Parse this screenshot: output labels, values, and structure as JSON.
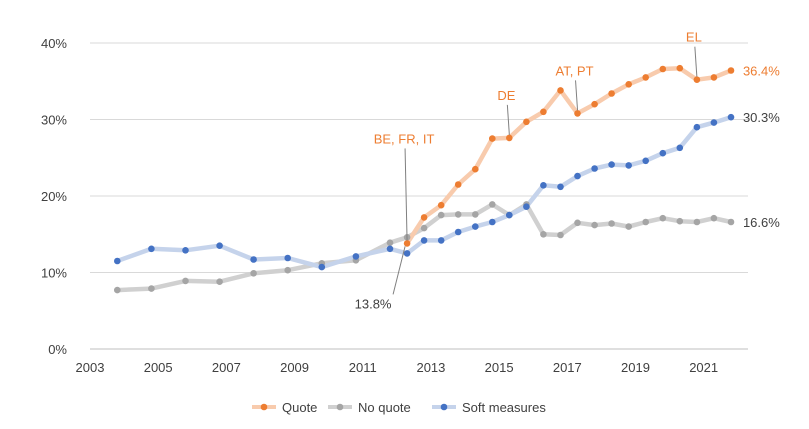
{
  "chart_data": {
    "type": "line",
    "title": "",
    "xlabel": "",
    "ylabel": "",
    "xlim": [
      2003,
      2022.3
    ],
    "ylim": [
      0,
      40
    ],
    "x_ticks": [
      2003,
      2005,
      2007,
      2009,
      2011,
      2013,
      2015,
      2017,
      2019,
      2021
    ],
    "x_tick_labels": [
      "2003",
      "2005",
      "2007",
      "2009",
      "2011",
      "2013",
      "2015",
      "2017",
      "2019",
      "2021"
    ],
    "y_ticks": [
      0,
      10,
      20,
      30,
      40
    ],
    "y_tick_labels": [
      "0%",
      "10%",
      "20%",
      "30%",
      "40%"
    ],
    "grid": "horizontal",
    "legend_position": "bottom",
    "series": [
      {
        "name": "Quote",
        "color": "#ed7d31",
        "line_color": "#f8cbad",
        "x": [
          2012.3,
          2012.8,
          2013.3,
          2013.8,
          2014.3,
          2014.8,
          2015.3,
          2015.8,
          2016.3,
          2016.8,
          2017.3,
          2017.8,
          2018.3,
          2018.8,
          2019.3,
          2019.8,
          2020.3,
          2020.8,
          2021.3,
          2021.8
        ],
        "values": [
          13.8,
          17.2,
          18.8,
          21.5,
          23.5,
          27.5,
          27.6,
          29.7,
          31.0,
          33.8,
          30.8,
          32.0,
          33.4,
          34.6,
          35.5,
          36.6,
          36.7,
          35.2,
          35.5,
          36.4
        ],
        "end_label": "36.4%"
      },
      {
        "name": "No quote",
        "color": "#a5a5a5",
        "line_color": "#d0d0d0",
        "x": [
          2003.8,
          2004.8,
          2005.8,
          2006.8,
          2007.8,
          2008.8,
          2009.8,
          2010.8,
          2011.8,
          2012.3,
          2012.8,
          2013.3,
          2013.8,
          2014.3,
          2014.8,
          2015.3,
          2015.8,
          2016.3,
          2016.8,
          2017.3,
          2017.8,
          2018.3,
          2018.8,
          2019.3,
          2019.8,
          2020.3,
          2020.8,
          2021.3,
          2021.8
        ],
        "values": [
          7.7,
          7.9,
          8.9,
          8.8,
          9.9,
          10.3,
          11.2,
          11.6,
          13.9,
          14.6,
          15.8,
          17.5,
          17.6,
          17.6,
          18.9,
          17.5,
          18.9,
          15.0,
          14.9,
          16.5,
          16.2,
          16.4,
          16.0,
          16.6,
          17.1,
          16.7,
          16.6,
          17.1,
          16.6
        ],
        "end_label": "16.6%"
      },
      {
        "name": "Soft measures",
        "color": "#4472c4",
        "line_color": "#c5d3eb",
        "x": [
          2003.8,
          2004.8,
          2005.8,
          2006.8,
          2007.8,
          2008.8,
          2009.8,
          2010.8,
          2011.8,
          2012.3,
          2012.8,
          2013.3,
          2013.8,
          2014.3,
          2014.8,
          2015.3,
          2015.8,
          2016.3,
          2016.8,
          2017.3,
          2017.8,
          2018.3,
          2018.8,
          2019.3,
          2019.8,
          2020.3,
          2020.8,
          2021.3,
          2021.8
        ],
        "values": [
          11.5,
          13.1,
          12.9,
          13.5,
          11.7,
          11.9,
          10.7,
          12.1,
          13.1,
          12.5,
          14.2,
          14.2,
          15.3,
          16.0,
          16.6,
          17.5,
          18.6,
          21.4,
          21.2,
          22.6,
          23.6,
          24.1,
          24.0,
          24.6,
          25.6,
          26.3,
          29.0,
          29.6,
          30.3
        ],
        "end_label": "30.3%"
      }
    ],
    "annotations": [
      {
        "text": "BE, FR, IT",
        "x": 2012.3,
        "y": 13.8,
        "color": "#ed7d31",
        "position": "above"
      },
      {
        "text": "13.8%",
        "x": 2012.3,
        "y": 13.8,
        "color": "#404040",
        "position": "below"
      },
      {
        "text": "DE",
        "x": 2015.3,
        "y": 27.6,
        "color": "#ed7d31",
        "position": "above"
      },
      {
        "text": "AT, PT",
        "x": 2017.3,
        "y": 30.8,
        "color": "#ed7d31",
        "position": "above"
      },
      {
        "text": "EL",
        "x": 2020.8,
        "y": 35.2,
        "color": "#ed7d31",
        "position": "above"
      }
    ]
  }
}
